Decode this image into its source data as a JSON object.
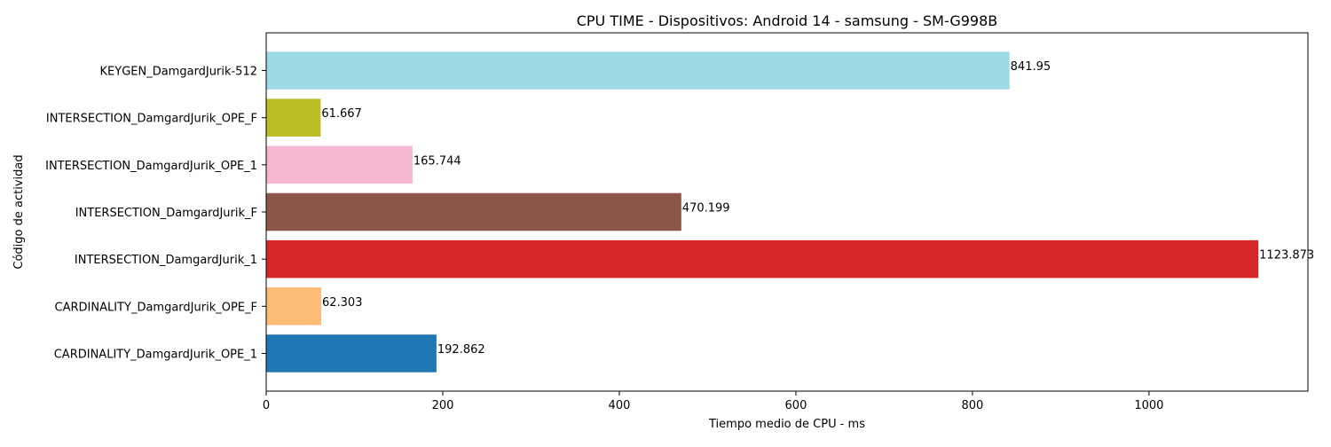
{
  "chart_data": {
    "type": "bar",
    "orientation": "horizontal",
    "title": "CPU TIME - Dispositivos: Android 14 - samsung - SM-G998B",
    "xlabel": "Tiempo medio de CPU - ms",
    "ylabel": "Código de actividad",
    "xlim": [
      0,
      1180
    ],
    "xticks": [
      0,
      200,
      400,
      600,
      800,
      1000
    ],
    "grid": false,
    "legend": "none",
    "categories": [
      "CARDINALITY_DamgardJurik_OPE_1",
      "CARDINALITY_DamgardJurik_OPE_F",
      "INTERSECTION_DamgardJurik_1",
      "INTERSECTION_DamgardJurik_F",
      "INTERSECTION_DamgardJurik_OPE_1",
      "INTERSECTION_DamgardJurik_OPE_F",
      "KEYGEN_DamgardJurik-512"
    ],
    "values": [
      192.862,
      62.303,
      1123.873,
      470.199,
      165.744,
      61.667,
      841.95
    ],
    "value_labels": [
      "192.862",
      "62.303",
      "1123.873",
      "470.199",
      "165.744",
      "61.667",
      "841.95"
    ],
    "colors": [
      "#1f77b4",
      "#ffbb78",
      "#d62728",
      "#8c564b",
      "#f7b6d2",
      "#bcbd22",
      "#9edae5"
    ]
  }
}
